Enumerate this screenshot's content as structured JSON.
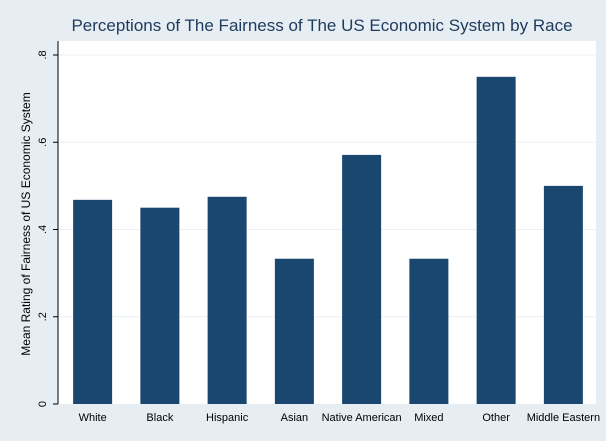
{
  "chart_data": {
    "type": "bar",
    "title": "Perceptions of The Fairness of The US Economic System by Race",
    "xlabel": "",
    "ylabel": "Mean Rating of Fairness of US Economic System",
    "categories": [
      "White",
      "Black",
      "Hispanic",
      "Asian",
      "Native American",
      "Mixed",
      "Other",
      "Middle Eastern"
    ],
    "values": [
      0.468,
      0.45,
      0.475,
      0.333,
      0.571,
      0.333,
      0.75,
      0.5
    ],
    "ylim": [
      0,
      0.8
    ],
    "yticks": [
      0,
      0.2,
      0.4,
      0.6,
      0.8
    ],
    "ytick_labels": [
      "0",
      ".2",
      ".4",
      ".6",
      ".8"
    ],
    "grid": true,
    "legend": "none",
    "colors": {
      "bar": "#1a476f",
      "title": "#1e3a5c",
      "plot_background": "#ffffff",
      "outer_background": "#e6eef4",
      "grid": "#eaf0f4"
    }
  }
}
